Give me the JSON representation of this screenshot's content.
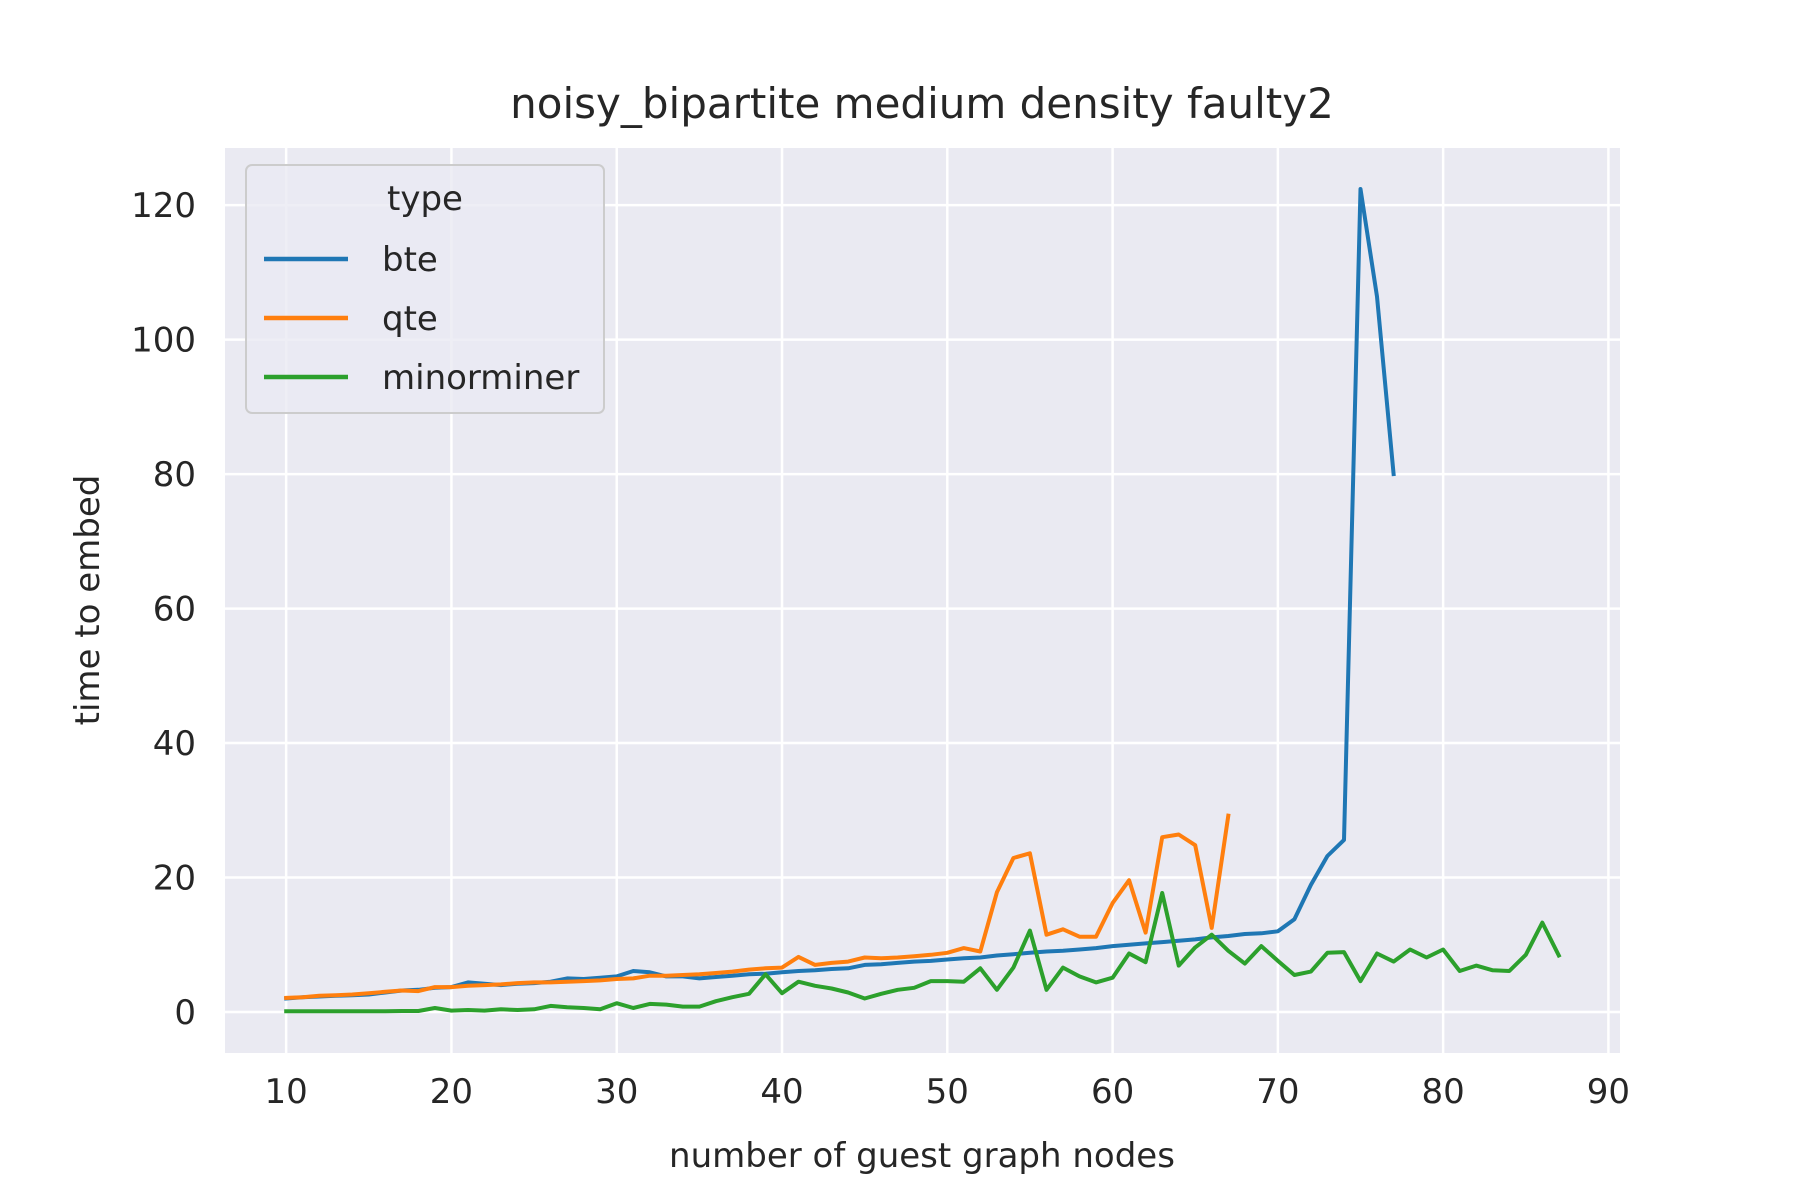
{
  "chart_data": {
    "type": "line",
    "title": "noisy_bipartite medium density faulty2",
    "xlabel": "number of guest graph nodes",
    "ylabel": "time to embed",
    "xlim": [
      6.3,
      90.7
    ],
    "ylim": [
      -6.1,
      128.5
    ],
    "x_ticks": [
      10,
      20,
      30,
      40,
      50,
      60,
      70,
      80,
      90
    ],
    "y_ticks": [
      0,
      20,
      40,
      60,
      80,
      100,
      120
    ],
    "grid": true,
    "background": "#eaeaf2",
    "legend": {
      "title": "type",
      "position": "upper left"
    },
    "series": [
      {
        "name": "bte",
        "color": "#1f77b4",
        "x": [
          10,
          11,
          12,
          13,
          14,
          15,
          16,
          17,
          18,
          19,
          20,
          21,
          22,
          23,
          24,
          25,
          26,
          27,
          28,
          29,
          30,
          31,
          32,
          33,
          34,
          35,
          36,
          37,
          38,
          39,
          40,
          41,
          42,
          43,
          44,
          45,
          46,
          47,
          48,
          49,
          50,
          51,
          52,
          53,
          54,
          55,
          56,
          57,
          58,
          59,
          60,
          61,
          62,
          63,
          64,
          65,
          66,
          67,
          68,
          69,
          70,
          71,
          72,
          73,
          74,
          75,
          76,
          77
        ],
        "y": [
          2.0,
          2.2,
          2.3,
          2.4,
          2.5,
          2.6,
          2.9,
          3.2,
          3.3,
          3.6,
          3.7,
          4.4,
          4.2,
          4.0,
          4.2,
          4.3,
          4.5,
          5.0,
          4.9,
          5.1,
          5.3,
          6.1,
          5.9,
          5.3,
          5.3,
          5.0,
          5.2,
          5.4,
          5.6,
          5.7,
          5.9,
          6.1,
          6.2,
          6.4,
          6.5,
          7.0,
          7.1,
          7.3,
          7.5,
          7.6,
          7.8,
          8.0,
          8.1,
          8.4,
          8.6,
          8.8,
          9.0,
          9.1,
          9.3,
          9.5,
          9.8,
          10.0,
          10.2,
          10.4,
          10.6,
          10.8,
          11.1,
          11.3,
          11.6,
          11.7,
          12.0,
          13.8,
          18.9,
          23.2,
          25.6,
          122.4,
          106.4,
          80.0
        ]
      },
      {
        "name": "qte",
        "color": "#ff7f0e",
        "x": [
          10,
          11,
          12,
          13,
          14,
          15,
          16,
          17,
          18,
          19,
          20,
          21,
          22,
          23,
          24,
          25,
          26,
          27,
          28,
          29,
          30,
          31,
          32,
          33,
          34,
          35,
          36,
          37,
          38,
          39,
          40,
          41,
          42,
          43,
          44,
          45,
          46,
          47,
          48,
          49,
          50,
          51,
          52,
          53,
          54,
          55,
          56,
          57,
          58,
          59,
          60,
          61,
          62,
          63,
          64,
          65,
          66,
          67
        ],
        "y": [
          2.1,
          2.2,
          2.4,
          2.5,
          2.6,
          2.8,
          3.0,
          3.2,
          3.1,
          3.7,
          3.7,
          3.9,
          4.0,
          4.1,
          4.3,
          4.4,
          4.4,
          4.5,
          4.6,
          4.7,
          4.9,
          5.0,
          5.4,
          5.4,
          5.5,
          5.6,
          5.8,
          6.0,
          6.3,
          6.5,
          6.6,
          8.2,
          7.0,
          7.3,
          7.5,
          8.1,
          8.0,
          8.1,
          8.3,
          8.5,
          8.8,
          9.5,
          9.0,
          17.8,
          22.9,
          23.6,
          11.5,
          12.3,
          11.2,
          11.2,
          16.2,
          19.6,
          11.8,
          26.0,
          26.4,
          24.8,
          12.5,
          29.2
        ]
      },
      {
        "name": "minorminer",
        "color": "#2ca02c",
        "x": [
          10,
          11,
          12,
          13,
          14,
          15,
          16,
          17,
          18,
          19,
          20,
          21,
          22,
          23,
          24,
          25,
          26,
          27,
          28,
          29,
          30,
          31,
          32,
          33,
          34,
          35,
          36,
          37,
          38,
          39,
          40,
          41,
          42,
          43,
          44,
          45,
          46,
          47,
          48,
          49,
          50,
          51,
          52,
          53,
          54,
          55,
          56,
          57,
          58,
          59,
          60,
          61,
          62,
          63,
          64,
          65,
          66,
          67,
          68,
          69,
          70,
          71,
          72,
          73,
          74,
          75,
          76,
          77,
          78,
          79,
          80,
          81,
          82,
          83,
          84,
          85,
          86,
          87
        ],
        "y": [
          0.1,
          0.1,
          0.1,
          0.1,
          0.1,
          0.1,
          0.1,
          0.15,
          0.15,
          0.6,
          0.2,
          0.3,
          0.2,
          0.4,
          0.3,
          0.4,
          0.9,
          0.7,
          0.6,
          0.4,
          1.3,
          0.6,
          1.2,
          1.1,
          0.8,
          0.8,
          1.6,
          2.2,
          2.7,
          5.6,
          2.8,
          4.5,
          3.9,
          3.5,
          2.9,
          2.0,
          2.7,
          3.3,
          3.6,
          4.6,
          4.6,
          4.5,
          6.5,
          3.3,
          6.6,
          12.1,
          3.3,
          6.6,
          5.3,
          4.4,
          5.1,
          8.7,
          7.4,
          17.7,
          6.9,
          9.6,
          11.5,
          9.1,
          7.2,
          9.8,
          7.6,
          5.5,
          6.0,
          8.8,
          8.9,
          4.6,
          8.7,
          7.5,
          9.3,
          8.1,
          9.3,
          6.1,
          6.9,
          6.2,
          6.1,
          8.5,
          13.3,
          8.4
        ]
      }
    ]
  }
}
